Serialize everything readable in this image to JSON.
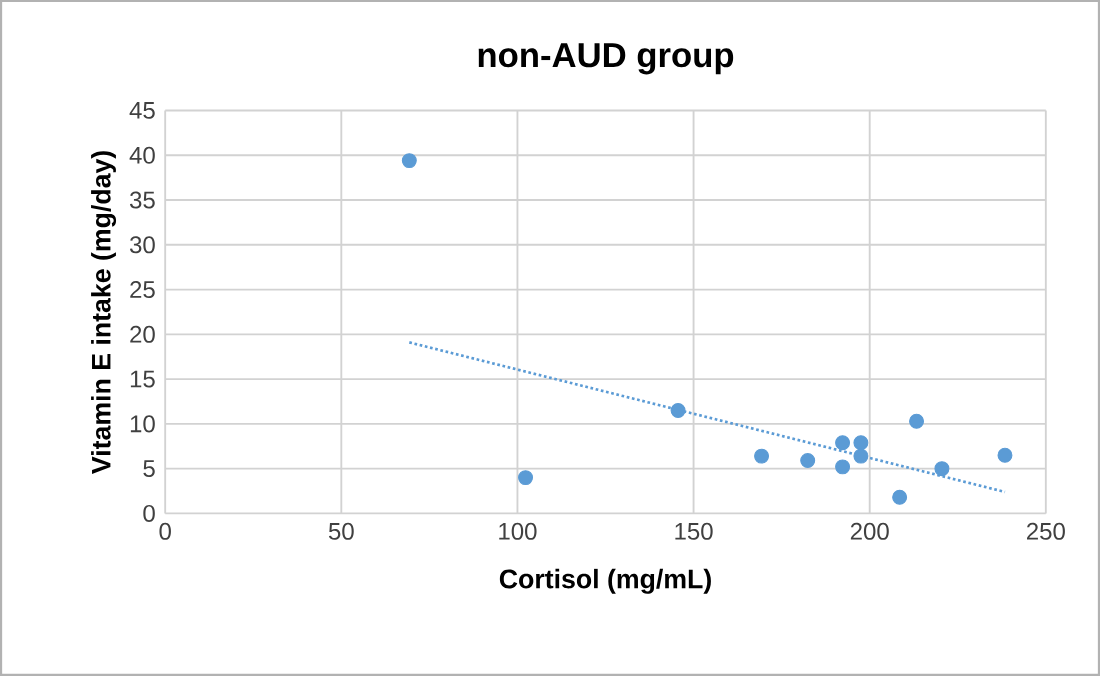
{
  "chart_data": {
    "type": "scatter",
    "title": "non-AUD group",
    "xlabel": "Cortisol (mg/mL)",
    "ylabel": "Vitamin E intake (mg/day)",
    "xlim": [
      0,
      250
    ],
    "xticks": [
      0,
      50,
      100,
      150,
      200,
      250
    ],
    "ylim": [
      0,
      45
    ],
    "yticks": [
      0,
      5,
      10,
      15,
      20,
      25,
      30,
      35,
      40,
      45
    ],
    "grid": true,
    "series": [
      {
        "color": "#5b9bd5",
        "marker": "circle",
        "x": [
          69.3,
          102.3,
          145.6,
          169.3,
          182.4,
          192.3,
          192.3,
          197.5,
          197.5,
          208.5,
          213.3,
          220.5,
          238.4
        ],
        "values": [
          39.4,
          4.0,
          11.5,
          6.4,
          5.9,
          7.9,
          5.2,
          7.9,
          6.4,
          1.8,
          10.3,
          5.0,
          6.5
        ]
      },
      {
        "type": "line",
        "color": "#5b9bd5",
        "line_style": "dotted",
        "marker": "none",
        "x": [
          69.3,
          238.4
        ],
        "values": [
          19.1,
          2.4
        ]
      }
    ]
  }
}
